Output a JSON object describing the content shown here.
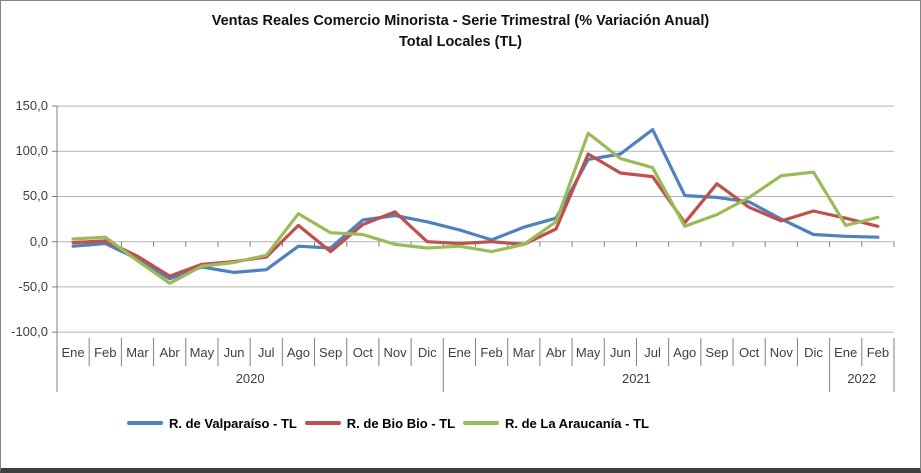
{
  "title": {
    "line1": "Ventas Reales Comercio Minorista - Serie Trimestral (% Variación Anual)",
    "line2": "Total Locales (TL)"
  },
  "chart_data": {
    "type": "line",
    "title": "Ventas Reales Comercio Minorista - Serie Trimestral (% Variación Anual) Total Locales (TL)",
    "ylabel": "",
    "xlabel": "",
    "grid": true,
    "legend_position": "bottom",
    "y_axis": {
      "min": -100,
      "max": 150,
      "ticks": [
        {
          "label": "150,0",
          "value": 150
        },
        {
          "label": "100,0",
          "value": 100
        },
        {
          "label": "50,0",
          "value": 50
        },
        {
          "label": "0,0",
          "value": 0
        },
        {
          "label": "-50,0",
          "value": -50
        },
        {
          "label": "-100,0",
          "value": -100
        }
      ]
    },
    "x_groups": [
      {
        "year": "2020",
        "months": [
          "Ene",
          "Feb",
          "Mar",
          "Abr",
          "May",
          "Jun",
          "Jul",
          "Ago",
          "Sep",
          "Oct",
          "Nov",
          "Dic"
        ]
      },
      {
        "year": "2021",
        "months": [
          "Ene",
          "Feb",
          "Mar",
          "Abr",
          "May",
          "Jun",
          "Jul",
          "Ago",
          "Sep",
          "Oct",
          "Nov",
          "Dic"
        ]
      },
      {
        "year": "2022",
        "months": [
          "Ene",
          "Feb"
        ]
      }
    ],
    "series": [
      {
        "key": "valparaiso",
        "name": "R. de Valparaíso - TL",
        "color": "#4F81BD",
        "values": [
          -5,
          -2,
          -19,
          -41,
          -28,
          -34,
          -31,
          -5,
          -7,
          24,
          29,
          22,
          13,
          2,
          16,
          26,
          91,
          97,
          124,
          51,
          49,
          44,
          25,
          8,
          6,
          5
        ]
      },
      {
        "key": "bio-bio",
        "name": "R. de Bio Bio - TL",
        "color": "#C0504D",
        "values": [
          -1,
          1,
          -16,
          -38,
          -25,
          -22,
          -17,
          18,
          -11,
          19,
          33,
          0,
          -2,
          0,
          -3,
          14,
          97,
          76,
          72,
          21,
          64,
          38,
          23,
          34,
          26,
          17
        ]
      },
      {
        "key": "la-araucania",
        "name": "R. de La Araucanía - TL",
        "color": "#9BBB59",
        "values": [
          3,
          5,
          -21,
          -46,
          -27,
          -23,
          -15,
          31,
          10,
          8,
          -3,
          -7,
          -5,
          -11,
          -3,
          22,
          120,
          92,
          82,
          17,
          30,
          49,
          73,
          77,
          18,
          27
        ]
      }
    ]
  },
  "colors": {
    "gridline": "#B3B3B3",
    "axis_line": "#7F7F7F",
    "axis_text": "#3F3F3F",
    "frame_border": "#848484",
    "bottom_bar": "#3F3F3F",
    "background": "#FFFFFF"
  }
}
